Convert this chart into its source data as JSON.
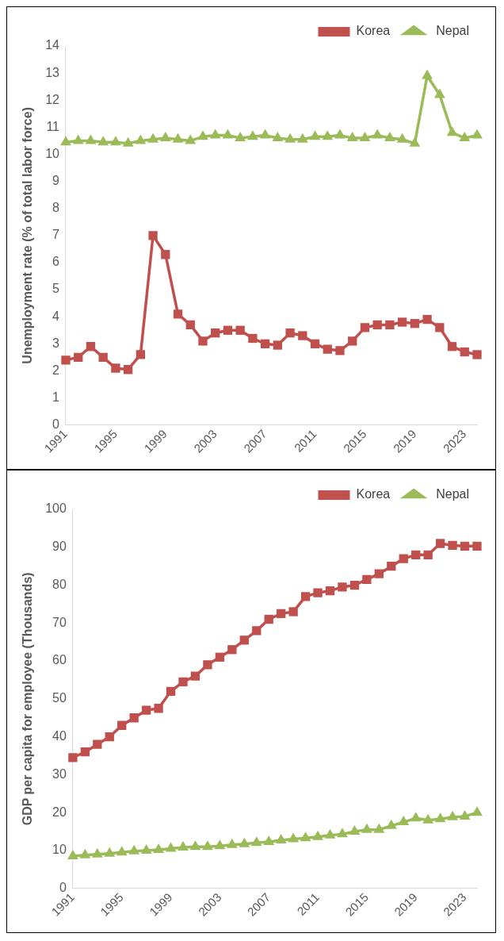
{
  "chart_data": [
    {
      "type": "line",
      "ylabel": "Unemployment rate (% of total labor force)",
      "categories": [
        "1991",
        null,
        null,
        null,
        "1995",
        null,
        null,
        null,
        "1999",
        null,
        null,
        null,
        "2003",
        null,
        null,
        null,
        "2007",
        null,
        null,
        null,
        "2011",
        null,
        null,
        null,
        "2015",
        null,
        null,
        null,
        "2019",
        null,
        null,
        null,
        "2023",
        null
      ],
      "series": [
        {
          "name": "Korea",
          "color": "#c0504d",
          "marker": "square",
          "values": [
            2.4,
            2.5,
            2.9,
            2.5,
            2.1,
            2.05,
            2.6,
            7.0,
            6.3,
            4.1,
            3.7,
            3.1,
            3.4,
            3.5,
            3.5,
            3.2,
            3.0,
            2.95,
            3.4,
            3.3,
            3.0,
            2.8,
            2.75,
            3.1,
            3.6,
            3.7,
            3.7,
            3.8,
            3.75,
            3.9,
            3.6,
            2.9,
            2.7,
            2.6
          ]
        },
        {
          "name": "Nepal",
          "color": "#9bbb59",
          "marker": "triangle",
          "values": [
            10.45,
            10.5,
            10.5,
            10.45,
            10.45,
            10.4,
            10.5,
            10.55,
            10.6,
            10.55,
            10.5,
            10.65,
            10.7,
            10.7,
            10.6,
            10.65,
            10.7,
            10.6,
            10.55,
            10.55,
            10.65,
            10.65,
            10.7,
            10.6,
            10.6,
            10.7,
            10.6,
            10.55,
            10.4,
            12.9,
            12.2,
            10.8,
            10.6,
            10.7
          ]
        }
      ],
      "ylim": [
        0,
        14
      ],
      "yticks": [
        0,
        1,
        2,
        3,
        4,
        5,
        6,
        7,
        8,
        9,
        10,
        11,
        12,
        13,
        14
      ],
      "grid": false,
      "legend": "top right"
    },
    {
      "type": "line",
      "ylabel": "GDP per capita for employee (Thousands)",
      "categories": [
        "1991",
        null,
        null,
        null,
        "1995",
        null,
        null,
        null,
        "1999",
        null,
        null,
        null,
        "2003",
        null,
        null,
        null,
        "2007",
        null,
        null,
        null,
        "2011",
        null,
        null,
        null,
        "2015",
        null,
        null,
        null,
        "2019",
        null,
        null,
        null,
        "2023",
        null
      ],
      "series": [
        {
          "name": "Korea",
          "color": "#c0504d",
          "marker": "square",
          "values": [
            34.5,
            36,
            38,
            40,
            43,
            45,
            47,
            47.5,
            52,
            54.5,
            56,
            59,
            61,
            63,
            65.5,
            68,
            71,
            72.5,
            73,
            77,
            78,
            78.5,
            79.5,
            80,
            81.5,
            83,
            85,
            87,
            88,
            88,
            91,
            90.5,
            90.3,
            90.3
          ]
        },
        {
          "name": "Nepal",
          "color": "#9bbb59",
          "marker": "triangle",
          "values": [
            8.5,
            8.8,
            9,
            9.2,
            9.5,
            9.8,
            10,
            10.2,
            10.5,
            10.8,
            11,
            11,
            11.2,
            11.5,
            11.7,
            12,
            12.3,
            12.7,
            13,
            13.3,
            13.6,
            14,
            14.3,
            15,
            15.5,
            15.5,
            16.5,
            17.5,
            18.5,
            18,
            18.3,
            18.8,
            19,
            20
          ]
        }
      ],
      "ylim": [
        0,
        100
      ],
      "yticks": [
        0,
        10,
        20,
        30,
        40,
        50,
        60,
        70,
        80,
        90,
        100
      ],
      "grid": false,
      "legend": "top right"
    }
  ]
}
